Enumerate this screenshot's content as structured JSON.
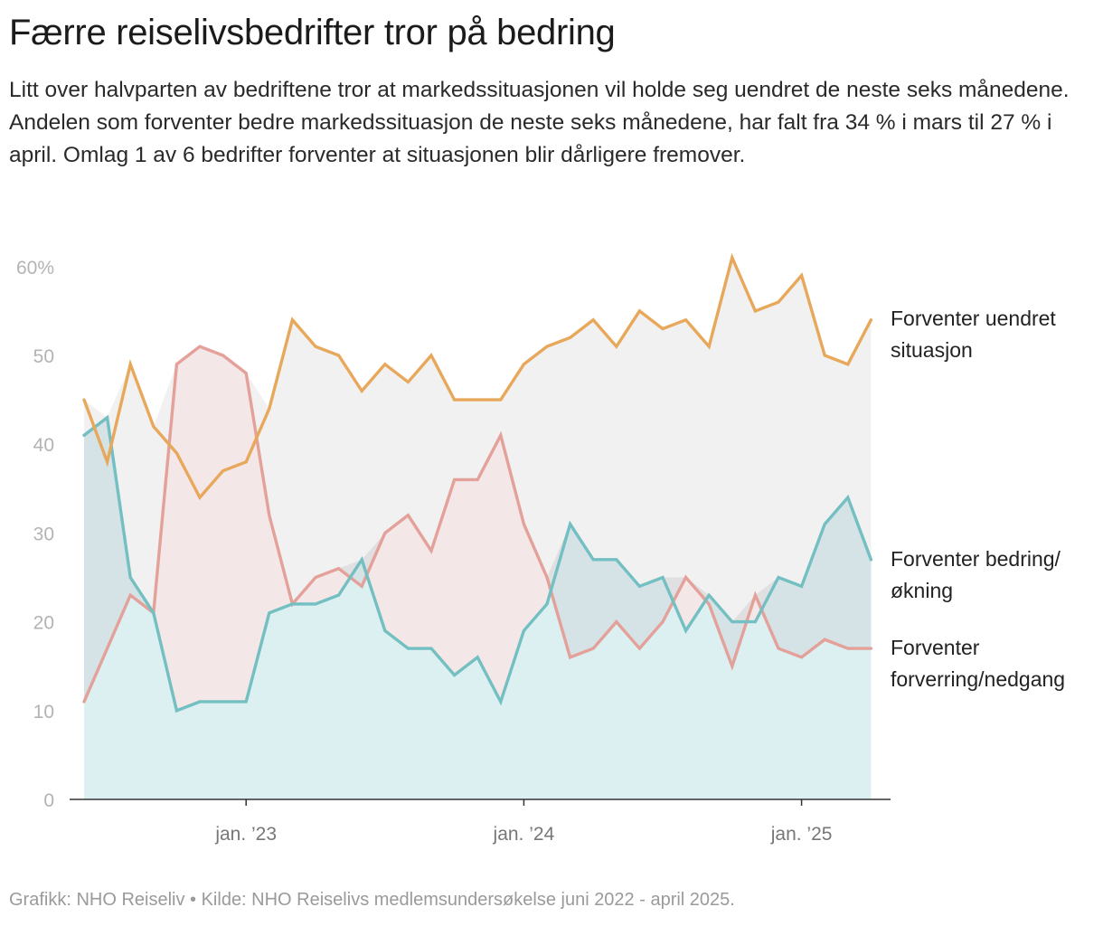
{
  "title": "Færre reiselivsbedrifter tror på bedring",
  "subtitle": "Litt over halvparten av bedriftene tror at markedssituasjonen vil holde seg uendret de neste seks månedene. Andelen som forventer bedre markedssituasjon de neste seks månedene, har falt fra 34 % i mars til 27 % i april. Omlag 1 av 6 bedrifter forventer at situasjonen blir dårligere fremover.",
  "source": "Grafikk: NHO Reiseliv • Kilde: NHO Reiselivs medlemsundersøkelse juni 2022 - april 2025.",
  "chart_data": {
    "type": "line",
    "title": "Færre reiselivsbedrifter tror på bedring",
    "x_start": "2022-06",
    "x_end": "2025-04",
    "xlabel": "",
    "ylabel": "",
    "ylim": [
      0,
      60
    ],
    "grid": false,
    "yticks": [
      {
        "value": 0,
        "label": "0"
      },
      {
        "value": 10,
        "label": "10"
      },
      {
        "value": 20,
        "label": "20"
      },
      {
        "value": 30,
        "label": "30"
      },
      {
        "value": 40,
        "label": "40"
      },
      {
        "value": 50,
        "label": "50"
      },
      {
        "value": 60,
        "label": "60%"
      }
    ],
    "xticks": [
      {
        "index": 7,
        "label": "jan. ’23"
      },
      {
        "index": 19,
        "label": "jan. ’24"
      },
      {
        "index": 31,
        "label": "jan. ’25"
      }
    ],
    "series": [
      {
        "name": "Forventer uendret situasjon",
        "label_lines": [
          "Forventer uendret",
          "situasjon"
        ],
        "color": "#E8A85C",
        "area_color": "#F1F1F1",
        "values": [
          45,
          38,
          49,
          42,
          39,
          34,
          37,
          38,
          44,
          54,
          51,
          50,
          46,
          49,
          47,
          50,
          45,
          45,
          45,
          49,
          51,
          52,
          54,
          51,
          55,
          53,
          54,
          51,
          61,
          55,
          56,
          59,
          50,
          49,
          54
        ]
      },
      {
        "name": "Forventer bedring/økning",
        "label_lines": [
          "Forventer bedring/",
          "økning"
        ],
        "color": "#73BFC1",
        "area_color": "#DCF0F2",
        "values": [
          41,
          43,
          25,
          21,
          10,
          11,
          11,
          11,
          21,
          22,
          22,
          23,
          27,
          19,
          17,
          17,
          14,
          16,
          11,
          19,
          22,
          31,
          27,
          27,
          24,
          25,
          19,
          23,
          20,
          20,
          25,
          24,
          31,
          34,
          27
        ]
      },
      {
        "name": "Forventer forverring/nedgang",
        "label_lines": [
          "Forventer",
          "forverring/nedgang"
        ],
        "color": "#E3A19A",
        "area_color": "#F4E3E3",
        "values": [
          11,
          17,
          23,
          21,
          49,
          51,
          50,
          48,
          32,
          22,
          25,
          26,
          24,
          30,
          32,
          28,
          36,
          36,
          41,
          31,
          25,
          16,
          17,
          20,
          17,
          20,
          25,
          22,
          15,
          23,
          17,
          16,
          18,
          17,
          17
        ]
      }
    ]
  }
}
